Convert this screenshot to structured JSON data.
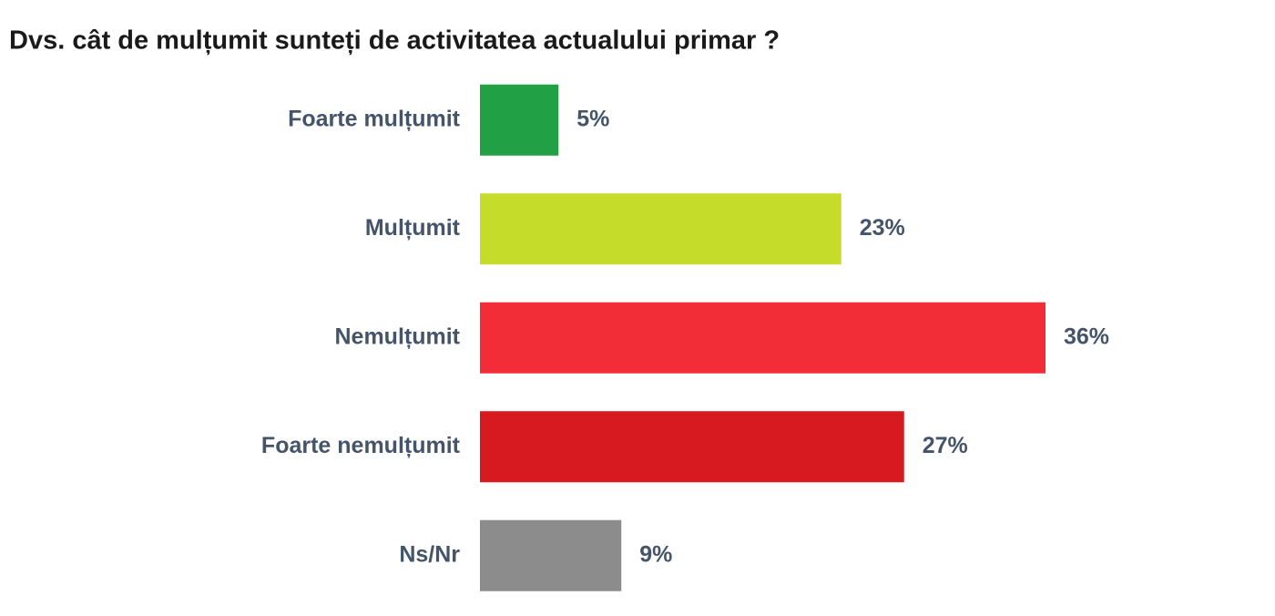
{
  "chart_data": {
    "type": "bar",
    "orientation": "horizontal",
    "title": "Dvs. cât de mulțumit sunteți de activitatea actualului primar ?",
    "categories": [
      "Foarte mulțumit",
      "Mulțumit",
      "Nemulțumit",
      "Foarte nemulțumit",
      "Ns/Nr"
    ],
    "values": [
      5,
      23,
      36,
      27,
      9
    ],
    "value_labels": [
      "5%",
      "23%",
      "36%",
      "27%",
      "9%"
    ],
    "colors": [
      "#21a045",
      "#c5dc2b",
      "#f22d38",
      "#d71920",
      "#8c8c8c"
    ],
    "xlim": [
      0,
      40
    ]
  }
}
